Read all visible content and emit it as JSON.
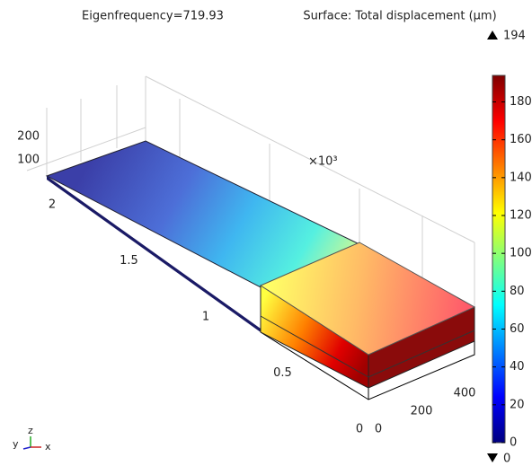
{
  "chart_data": {
    "type": "surface3d",
    "title": "Eigenfrequency=719.93",
    "subtitle": "Surface: Total displacement (μm)",
    "xticks": [
      0,
      200,
      400
    ],
    "xlim": [
      0,
      400
    ],
    "yticks": [
      0,
      {
        "value": 500,
        "label": "0.5"
      },
      {
        "value": 1000,
        "label": "1"
      },
      {
        "value": 1500,
        "label": "1.5"
      },
      {
        "value": 2000,
        "label": "2"
      }
    ],
    "ylim": [
      0,
      2000
    ],
    "y_multiplier": "×10³",
    "zticks": [
      100,
      200
    ],
    "zlim": [
      100,
      200
    ],
    "axis_triad": [
      "y",
      "z",
      "x"
    ],
    "colorbar": {
      "clim": [
        0,
        194
      ],
      "ticks": [
        0,
        20,
        40,
        60,
        80,
        100,
        120,
        140,
        160,
        180
      ],
      "colormap": [
        "#00007f",
        "#0000ff",
        "#007fff",
        "#00ffff",
        "#7fff7f",
        "#ffff00",
        "#ff7f00",
        "#ff0000",
        "#7f0000"
      ]
    }
  }
}
